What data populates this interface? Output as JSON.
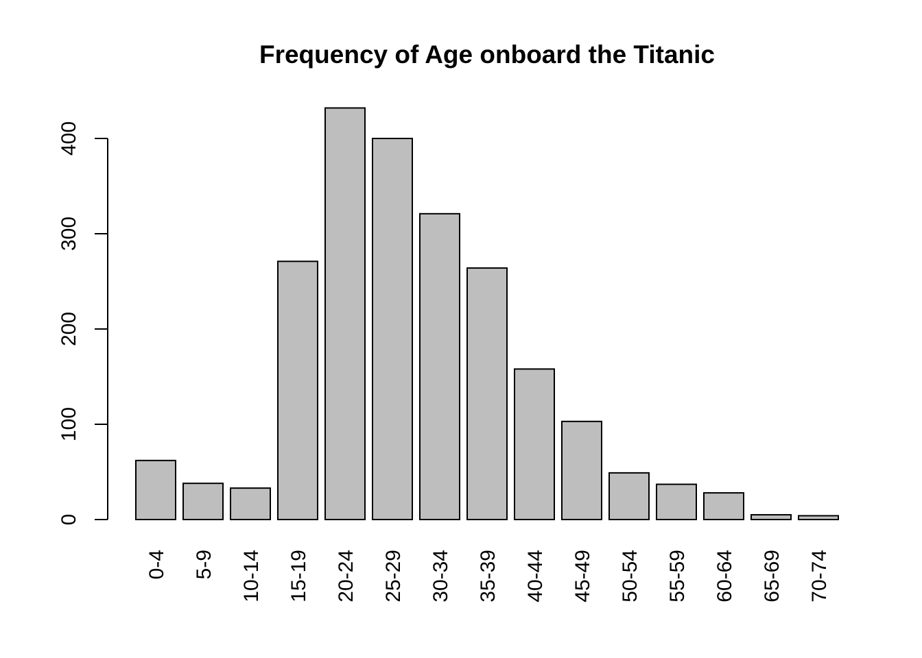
{
  "chart_data": {
    "type": "bar",
    "title": "Frequency of Age onboard the Titanic",
    "xlabel": "",
    "ylabel": "",
    "categories": [
      "0-4",
      "5-9",
      "10-14",
      "15-19",
      "20-24",
      "25-29",
      "30-34",
      "35-39",
      "40-44",
      "45-49",
      "50-54",
      "55-59",
      "60-64",
      "65-69",
      "70-74"
    ],
    "values": [
      62,
      38,
      33,
      271,
      432,
      400,
      321,
      264,
      158,
      103,
      49,
      37,
      28,
      5,
      4
    ],
    "ylim": [
      0,
      432
    ],
    "yticks": [
      "0",
      "100",
      "200",
      "300",
      "400"
    ],
    "bar_color": "#bebebe",
    "grid": false,
    "legend": "none"
  }
}
